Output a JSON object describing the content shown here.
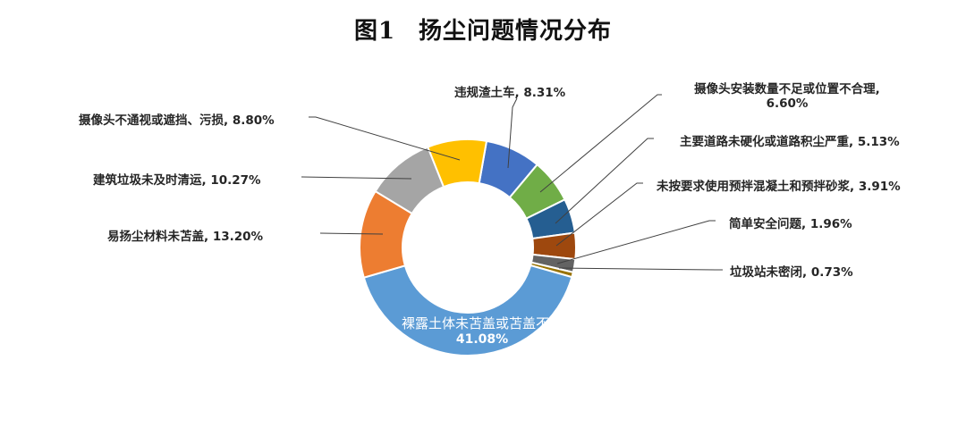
{
  "title": {
    "fig": "图1",
    "text": "扬尘问题情况分布"
  },
  "chart_data": {
    "type": "pie",
    "variant": "donut",
    "title": "图1 扬尘问题情况分布",
    "start_angle_deg": 10,
    "direction": "clockwise",
    "slices": [
      {
        "label": "违规渣土车",
        "value": 8.31,
        "display": "8.31%",
        "color": "#4472C4"
      },
      {
        "label": "摄像头安装数量不足或位置不合理",
        "value": 6.6,
        "display": "6.60%",
        "color": "#70AD47"
      },
      {
        "label": "主要道路未硬化或道路积尘严重",
        "value": 5.13,
        "display": "5.13%",
        "color": "#255E91"
      },
      {
        "label": "未按要求使用预拌混凝土和预拌砂浆",
        "value": 3.91,
        "display": "3.91%",
        "color": "#9E480E"
      },
      {
        "label": "简单安全问题",
        "value": 1.96,
        "display": "1.96%",
        "color": "#636363"
      },
      {
        "label": "垃圾站未密闭",
        "value": 0.73,
        "display": "0.73%",
        "color": "#997300"
      },
      {
        "label": "裸露土体未苫盖或苫盖不严",
        "value": 41.08,
        "display": "41.08%",
        "color": "#5B9BD5"
      },
      {
        "label": "易扬尘材料未苫盖",
        "value": 13.2,
        "display": "13.20%",
        "color": "#ED7D31"
      },
      {
        "label": "建筑垃圾未及时清运",
        "value": 10.27,
        "display": "10.27%",
        "color": "#A5A5A5"
      },
      {
        "label": "摄像头不通视或遮挡、污损",
        "value": 8.8,
        "display": "8.80%",
        "color": "#FFC000"
      }
    ],
    "legend": "none (data labels with leader lines)"
  },
  "labels": {
    "l0": "违规渣土车, 8.31%",
    "l1a": "摄像头安装数量不足或位置不合理,",
    "l1b": "6.60%",
    "l2": "主要道路未硬化或道路积尘严重, 5.13%",
    "l3": "未按要求使用预拌混凝土和预拌砂浆, 3.91%",
    "l4": "简单安全问题, 1.96%",
    "l5": "垃圾站未密闭, 0.73%",
    "l6a": "裸露土体未苫盖或苫盖不严",
    "l6b": "41.08%",
    "l7": "易扬尘材料未苫盖, 13.20%",
    "l8": "建筑垃圾未及时清运, 10.27%",
    "l9": "摄像头不通视或遮挡、污损, 8.80%"
  }
}
